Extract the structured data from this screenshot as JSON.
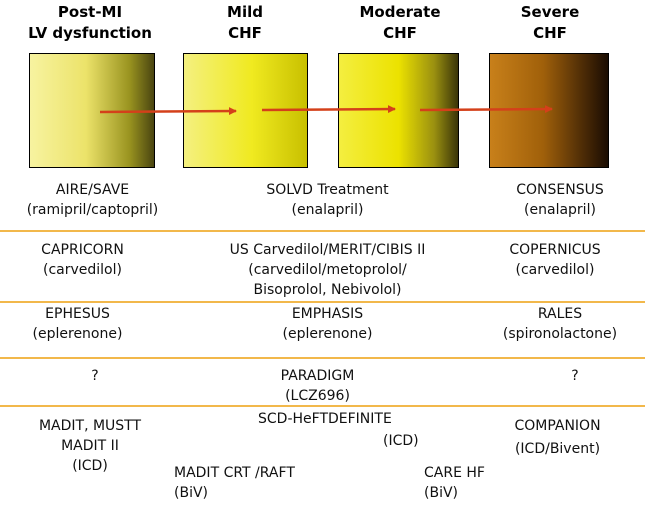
{
  "headers": {
    "post_mi": {
      "line1": "Post-MI",
      "line2": "LV dysfunction"
    },
    "mild": {
      "line1": "Mild",
      "line2": "CHF"
    },
    "moderate": {
      "line1": "Moderate",
      "line2": "CHF"
    },
    "severe": {
      "line1": "Severe",
      "line2": "CHF"
    }
  },
  "colors": {
    "arrow": "#d4401a",
    "separator": "#f2b84b"
  },
  "rows": {
    "row1": {
      "left": {
        "name": "AIRE/SAVE",
        "drug": "(ramipril/captopril)"
      },
      "center": {
        "name": "SOLVD Treatment",
        "drug": "(enalapril)"
      },
      "right": {
        "name": "CONSENSUS",
        "drug": "(enalapril)"
      }
    },
    "row2": {
      "left": {
        "name": "CAPRICORN",
        "drug": "(carvedilol)"
      },
      "center": {
        "name": "US Carvedilol/MERIT/CIBIS II",
        "drug": "(carvedilol/metoprolol/",
        "drug2": "Bisoprolol, Nebivolol)"
      },
      "right": {
        "name": "COPERNICUS",
        "drug": "(carvedilol)"
      }
    },
    "row3": {
      "left": {
        "name": "EPHESUS",
        "drug": "(eplerenone)"
      },
      "center": {
        "name": "EMPHASIS",
        "drug": "(eplerenone)"
      },
      "right": {
        "name": "RALES",
        "drug": "(spironolactone)"
      }
    },
    "row4": {
      "left": {
        "name": "?"
      },
      "center": {
        "name": "PARADIGM",
        "drug": "(LCZ696)"
      },
      "right": {
        "name": "?"
      }
    },
    "row5": {
      "left": {
        "line1": "MADIT, MUSTT",
        "line2": "MADIT II",
        "line3": "(ICD)"
      },
      "center": {
        "name": "SCD-HeFTDEFINITE",
        "drug": "(ICD)"
      },
      "right": {
        "name": "COMPANION",
        "drug": "(ICD/Bivent)"
      },
      "crt": {
        "name": "MADIT CRT /RAFT",
        "drug": "(BiV)"
      },
      "care": {
        "name": "CARE HF",
        "drug": "(BiV)"
      }
    }
  }
}
